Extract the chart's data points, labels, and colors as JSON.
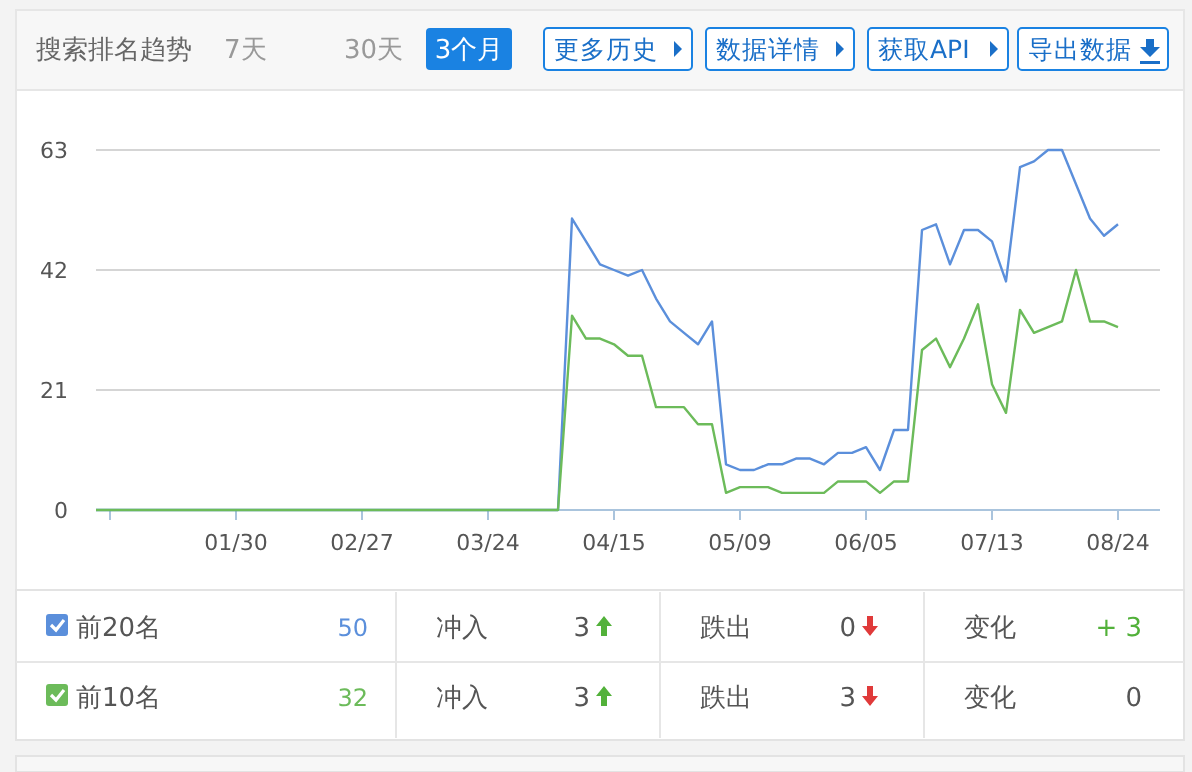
{
  "chart_data": {
    "type": "line",
    "title": "搜索排名趋势",
    "categories": [
      null,
      null,
      null,
      null,
      null,
      null,
      null,
      null,
      null,
      null,
      "01/30",
      null,
      null,
      null,
      null,
      null,
      null,
      null,
      null,
      "02/27",
      null,
      null,
      null,
      null,
      null,
      null,
      null,
      null,
      "03/24",
      null,
      null,
      null,
      null,
      null,
      null,
      null,
      null,
      "04/15",
      null,
      null,
      null,
      null,
      null,
      null,
      null,
      null,
      "05/09",
      null,
      null,
      null,
      null,
      null,
      null,
      null,
      null,
      "06/05",
      null,
      null,
      null,
      null,
      null,
      null,
      null,
      null,
      "07/13",
      null,
      null,
      null,
      null,
      null,
      null,
      null,
      null,
      "08/24"
    ],
    "series": [
      {
        "name": "前20名",
        "color": "#5b8fdb",
        "values": [
          0,
          0,
          0,
          0,
          0,
          0,
          0,
          0,
          0,
          0,
          0,
          0,
          0,
          0,
          0,
          0,
          0,
          0,
          0,
          0,
          0,
          0,
          0,
          0,
          0,
          0,
          0,
          0,
          0,
          0,
          0,
          0,
          0,
          0,
          51,
          47,
          43,
          42,
          41,
          42,
          37,
          33,
          31,
          29,
          33,
          8,
          7,
          7,
          8,
          8,
          9,
          9,
          8,
          10,
          10,
          11,
          7,
          14,
          14,
          49,
          50,
          43,
          49,
          49,
          47,
          40,
          60,
          61,
          63,
          63,
          57,
          51,
          48,
          50
        ]
      },
      {
        "name": "前10名",
        "color": "#6cbb5a",
        "values": [
          0,
          0,
          0,
          0,
          0,
          0,
          0,
          0,
          0,
          0,
          0,
          0,
          0,
          0,
          0,
          0,
          0,
          0,
          0,
          0,
          0,
          0,
          0,
          0,
          0,
          0,
          0,
          0,
          0,
          0,
          0,
          0,
          0,
          0,
          34,
          30,
          30,
          29,
          27,
          27,
          18,
          18,
          18,
          15,
          15,
          3,
          4,
          4,
          4,
          3,
          3,
          3,
          3,
          5,
          5,
          5,
          3,
          5,
          5,
          28,
          30,
          25,
          30,
          36,
          22,
          17,
          35,
          31,
          32,
          33,
          42,
          33,
          33,
          32
        ]
      }
    ],
    "ylim": [
      0,
      63
    ],
    "yticks": [
      0,
      21,
      42,
      63
    ],
    "grid": "y",
    "legend": "bottom",
    "marker": "none",
    "line_style": "solid",
    "annotations": [
      "7天",
      "30天",
      "3个月",
      "更多历史",
      "数据详情",
      "获取API",
      "导出数据",
      "50",
      "冲入",
      "3",
      "跌出",
      "0",
      "变化",
      "+ 3",
      "32",
      "冲入",
      "3",
      "跌出",
      "3",
      "变化",
      "0"
    ]
  }
}
